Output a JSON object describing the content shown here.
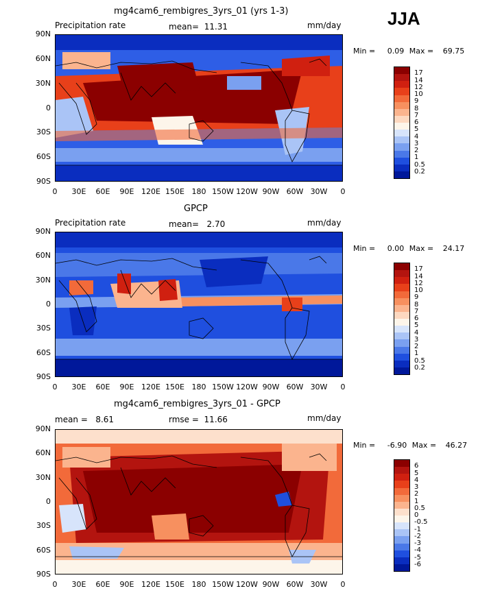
{
  "season_label": "JJA",
  "lat_labels": [
    "90N",
    "60N",
    "30N",
    "0",
    "30S",
    "60S",
    "90S"
  ],
  "lon_labels": [
    "0",
    "30E",
    "60E",
    "90E",
    "120E",
    "150E",
    "180",
    "150W",
    "120W",
    "90W",
    "60W",
    "30W",
    "0"
  ],
  "panels": [
    {
      "title": "mg4cam6_rembigres_3yrs_01 (yrs 1-3)",
      "left_text": "Precipitation rate",
      "mid_text": "mean=  11.31",
      "units": "mm/day",
      "min_label": "Min =",
      "min_value": "0.09",
      "max_label": "Max =",
      "max_value": "69.75",
      "colorbar": {
        "labels": [
          "17",
          "14",
          "12",
          "10",
          "9",
          "8",
          "7",
          "6",
          "5",
          "4",
          "3",
          "2",
          "1",
          "0.5",
          "0.2"
        ],
        "colors": [
          "#8b0000",
          "#b3140f",
          "#d02010",
          "#e8401a",
          "#f26a3a",
          "#f7905f",
          "#fbb48e",
          "#fdd8c0",
          "#fdf5ea",
          "#d7e4fb",
          "#aac4f6",
          "#7aa0f0",
          "#4a78e8",
          "#1f4fdf",
          "#0a2dbf",
          "#00189a"
        ]
      },
      "map_style": "model"
    },
    {
      "title": "GPCP",
      "left_text": "Precipitation rate",
      "mid_text": "mean=   2.70",
      "units": "mm/day",
      "min_label": "Min =",
      "min_value": "0.00",
      "max_label": "Max =",
      "max_value": "24.17",
      "colorbar": {
        "labels": [
          "17",
          "14",
          "12",
          "10",
          "9",
          "8",
          "7",
          "6",
          "5",
          "4",
          "3",
          "2",
          "1",
          "0.5",
          "0.2"
        ],
        "colors": [
          "#8b0000",
          "#b3140f",
          "#d02010",
          "#e8401a",
          "#f26a3a",
          "#f7905f",
          "#fbb48e",
          "#fdd8c0",
          "#fdf5ea",
          "#d7e4fb",
          "#aac4f6",
          "#7aa0f0",
          "#4a78e8",
          "#1f4fdf",
          "#0a2dbf",
          "#00189a"
        ]
      },
      "map_style": "obs"
    },
    {
      "title": "mg4cam6_rembigres_3yrs_01 - GPCP",
      "left_text": "mean =   8.61",
      "mid_text": "rmse =  11.66",
      "units": "mm/day",
      "min_label": "Min =",
      "min_value": "-6.90",
      "max_label": "Max =",
      "max_value": "46.27",
      "colorbar": {
        "labels": [
          "6",
          "5",
          "4",
          "3",
          "2",
          "1",
          "0.5",
          "0",
          "-0.5",
          "-1",
          "-2",
          "-3",
          "-4",
          "-5",
          "-6"
        ],
        "colors": [
          "#8b0000",
          "#b3140f",
          "#d02010",
          "#e8401a",
          "#f26a3a",
          "#f7905f",
          "#fbb48e",
          "#fde0cc",
          "#fdf5ea",
          "#d7e4fb",
          "#aac4f6",
          "#7aa0f0",
          "#4a78e8",
          "#1f4fdf",
          "#0a2dbf",
          "#00189a"
        ]
      },
      "map_style": "diff"
    }
  ]
}
